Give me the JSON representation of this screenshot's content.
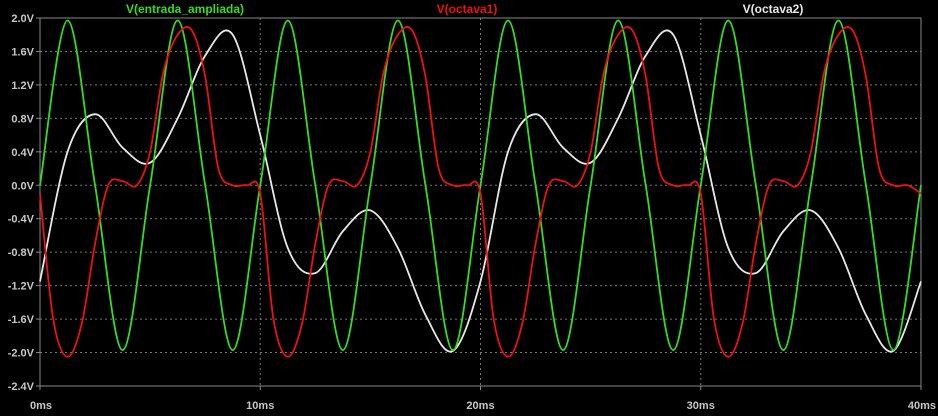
{
  "chart_data": {
    "type": "line",
    "title": "",
    "xlabel": "",
    "ylabel": "",
    "xlim": [
      0,
      40
    ],
    "ylim": [
      -2.4,
      2.0
    ],
    "x_ticks": [
      0,
      10,
      20,
      30,
      40
    ],
    "x_tick_labels": [
      "0ms",
      "10ms",
      "20ms",
      "30ms",
      "40ms"
    ],
    "y_ticks": [
      2.0,
      1.6,
      1.2,
      0.8,
      0.4,
      0.0,
      -0.4,
      -0.8,
      -1.2,
      -1.6,
      -2.0,
      -2.4
    ],
    "y_tick_labels": [
      "2.0V",
      "1.6V",
      "1.2V",
      "0.8V",
      "0.4V",
      "0.0V",
      "-0.4V",
      "-0.8V",
      "-1.2V",
      "-1.6V",
      "-2.0V",
      "-2.4V"
    ],
    "grid": true,
    "legend_placement": "top",
    "series": [
      {
        "name": "V(entrada_ampliada)",
        "color": "#33dd22",
        "x": [
          0,
          1.25,
          2.5,
          3.75,
          5,
          6.25,
          7.5,
          8.75,
          10,
          11.25,
          12.5,
          13.75,
          15,
          16.25,
          17.5,
          18.75,
          20,
          21.25,
          22.5,
          23.75,
          25,
          26.25,
          27.5,
          28.75,
          30,
          31.25,
          32.5,
          33.75,
          35,
          36.25,
          37.5,
          38.75,
          40
        ],
        "y": [
          0,
          1.97,
          0,
          -1.97,
          0,
          1.97,
          0,
          -1.97,
          0,
          1.97,
          0,
          -1.97,
          0,
          1.97,
          0,
          -1.97,
          0,
          1.97,
          0,
          -1.97,
          0,
          1.97,
          0,
          -1.97,
          0,
          1.97,
          0,
          -1.97,
          0,
          1.97,
          0,
          -1.97,
          0
        ]
      },
      {
        "name": "V(octava1)",
        "color": "#ee1111",
        "x": [
          0,
          0.6,
          1.25,
          1.9,
          2.5,
          3.1,
          3.75,
          4.4,
          5,
          5.6,
          6.25,
          6.9,
          7.5,
          8.1,
          8.75,
          9.4,
          10,
          10.6,
          11.25,
          11.9,
          12.5,
          13.1,
          13.75,
          14.4,
          15,
          15.6,
          16.25,
          16.9,
          17.5,
          18.1,
          18.75,
          19.4,
          20,
          20.6,
          21.25,
          21.9,
          22.5,
          23.1,
          23.75,
          24.4,
          25,
          25.6,
          26.25,
          26.9,
          27.5,
          28.1,
          28.75,
          29.4,
          30,
          30.6,
          31.25,
          31.9,
          32.5,
          33.1,
          33.75,
          34.4,
          35,
          35.6,
          36.25,
          36.9,
          37.5,
          38.1,
          38.75,
          39.4,
          40
        ],
        "y": [
          -0.1,
          -1.6,
          -2.05,
          -1.65,
          -0.7,
          0.0,
          0.05,
          0.0,
          0.4,
          1.35,
          1.8,
          1.85,
          1.3,
          0.2,
          0.0,
          0.0,
          -0.1,
          -1.6,
          -2.05,
          -1.65,
          -0.7,
          0.0,
          0.05,
          0.0,
          0.4,
          1.35,
          1.8,
          1.85,
          1.3,
          0.2,
          0.0,
          0.0,
          -0.1,
          -1.6,
          -2.05,
          -1.65,
          -0.7,
          0.0,
          0.05,
          0.0,
          0.4,
          1.35,
          1.8,
          1.85,
          1.3,
          0.2,
          0.0,
          0.0,
          -0.1,
          -1.6,
          -2.05,
          -1.65,
          -0.7,
          0.0,
          0.05,
          0.0,
          0.4,
          1.35,
          1.8,
          1.85,
          1.3,
          0.2,
          0.0,
          0.0,
          -0.1
        ]
      },
      {
        "name": "V(octava2)",
        "color": "#e8e8e8",
        "x": [
          0,
          1.25,
          2.5,
          3.75,
          5,
          6.25,
          7.5,
          8.75,
          10,
          11.25,
          12.5,
          13.75,
          15,
          16.25,
          17.5,
          18.75,
          20,
          21.25,
          22.5,
          23.75,
          25,
          26.25,
          27.5,
          28.75,
          30,
          31.25,
          32.5,
          33.75,
          35,
          36.25,
          37.5,
          38.75,
          40
        ],
        "y": [
          -1.15,
          0.4,
          0.85,
          0.45,
          0.27,
          0.8,
          1.55,
          1.8,
          0.6,
          -0.75,
          -1.05,
          -0.55,
          -0.3,
          -0.75,
          -1.55,
          -1.98,
          -1.15,
          0.4,
          0.85,
          0.45,
          0.27,
          0.8,
          1.55,
          1.8,
          0.6,
          -0.75,
          -1.05,
          -0.55,
          -0.3,
          -0.75,
          -1.55,
          -1.98,
          -1.15
        ]
      }
    ]
  }
}
